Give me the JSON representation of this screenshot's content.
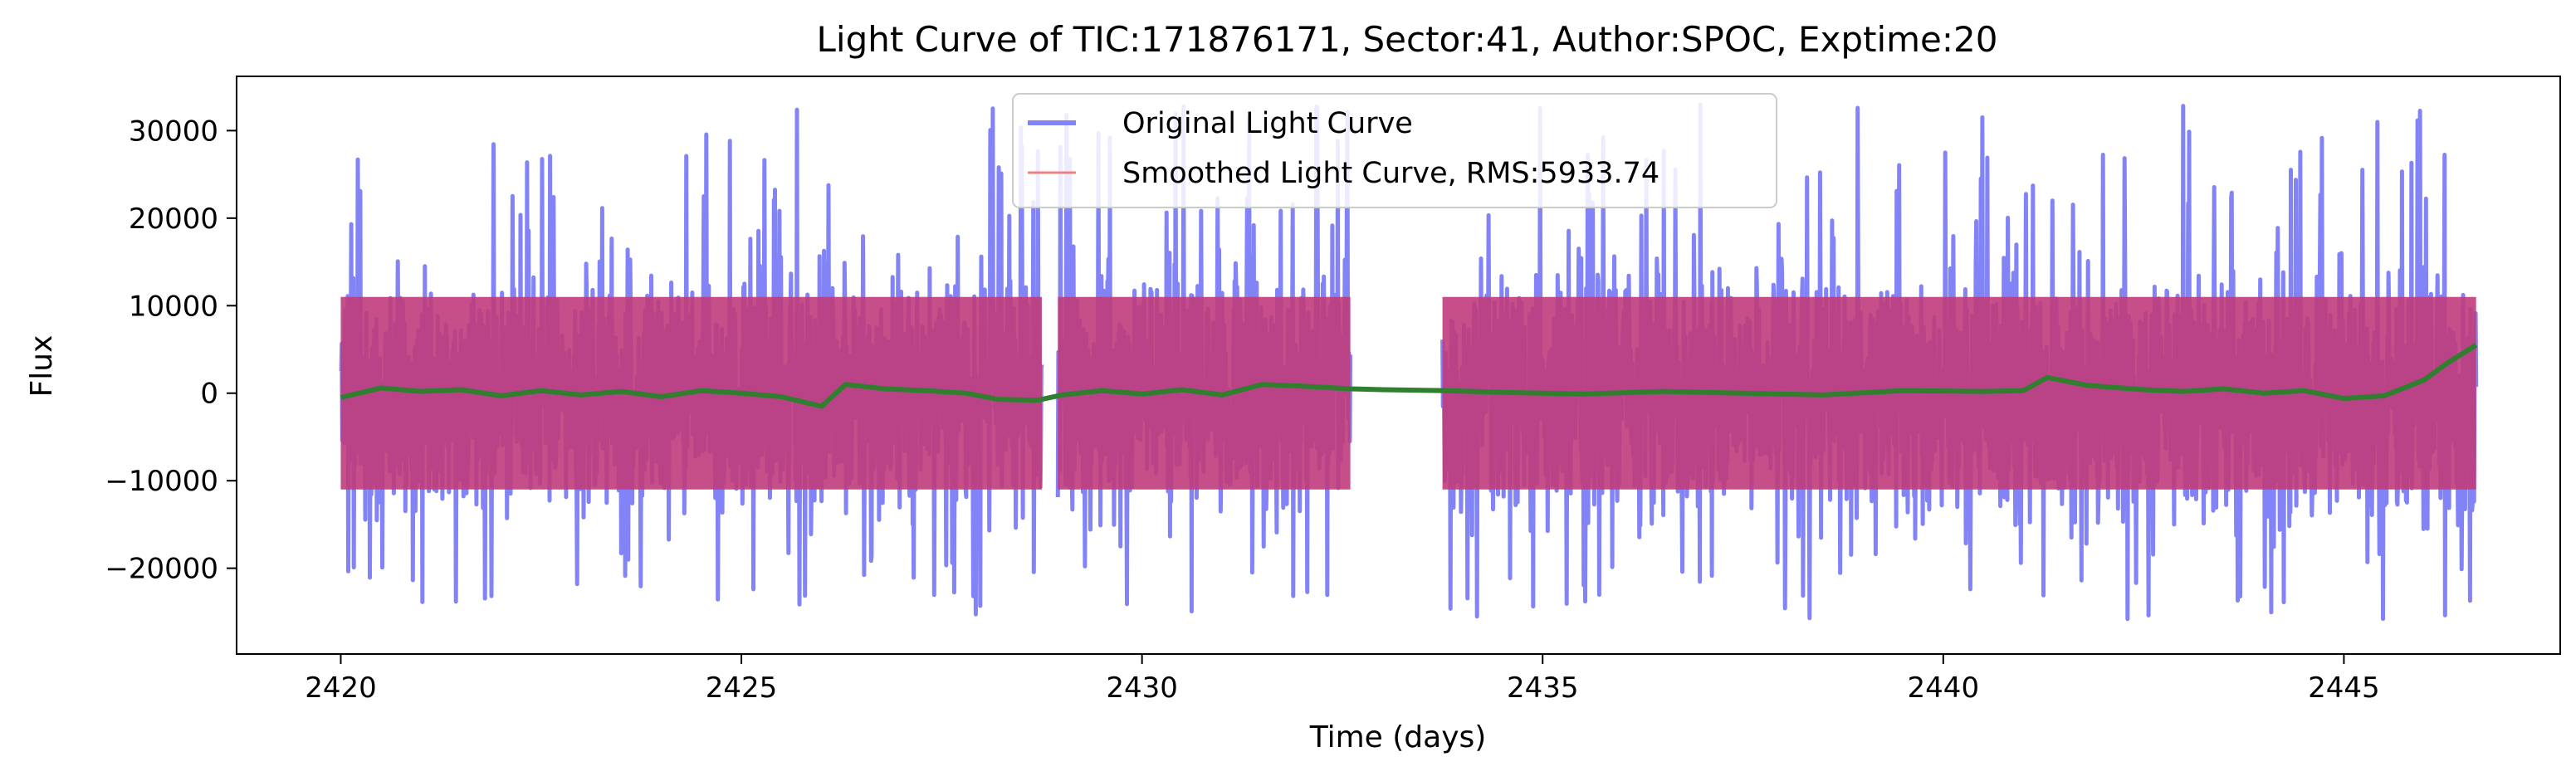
{
  "chart_data": {
    "type": "line",
    "title": "Light Curve of TIC:171876171, Sector:41, Author:SPOC, Exptime:20",
    "xlabel": "Time (days)",
    "ylabel": "Flux",
    "xlim": [
      2418.7,
      2447.7
    ],
    "ylim": [
      -29800,
      36200
    ],
    "xticks": [
      2420,
      2425,
      2430,
      2435,
      2440,
      2445
    ],
    "yticks": [
      -20000,
      -10000,
      0,
      10000,
      20000,
      30000
    ],
    "xtick_labels": [
      "2420",
      "2425",
      "2430",
      "2435",
      "2440",
      "2445"
    ],
    "ytick_labels": [
      "−20000",
      "−10000",
      "0",
      "10000",
      "20000",
      "30000"
    ],
    "grid": false,
    "legend_position": "top-center",
    "series": [
      {
        "name": "Original Light Curve",
        "color": "#7b7cf5",
        "segments": [
          [
            2420.0,
            2428.75
          ],
          [
            2428.95,
            2432.6
          ],
          [
            2433.75,
            2446.65
          ]
        ],
        "noise_envelope": [
          -17000,
          17000
        ],
        "peak_max": 33000,
        "trough_min": -26000
      },
      {
        "name": "Smoothed Light Curve, RMS:5933.74",
        "color": "#f08080",
        "segments": [
          [
            2420.0,
            2428.75
          ],
          [
            2428.95,
            2432.6
          ],
          [
            2433.75,
            2446.65
          ]
        ],
        "noise_envelope": [
          -17000,
          17000
        ]
      },
      {
        "name": "",
        "color": "#2f7f2f",
        "x": [
          2420.0,
          2420.5,
          2421.0,
          2421.5,
          2422.0,
          2422.5,
          2423.0,
          2423.5,
          2424.0,
          2424.5,
          2425.0,
          2425.5,
          2426.0,
          2426.3,
          2426.8,
          2427.3,
          2427.8,
          2428.2,
          2428.7,
          2429.0,
          2429.5,
          2430.0,
          2430.5,
          2431.0,
          2431.5,
          2432.0,
          2432.6,
          2433.0,
          2433.75,
          2434.5,
          2435.5,
          2436.5,
          2437.5,
          2438.5,
          2439.5,
          2440.5,
          2441.0,
          2441.3,
          2441.8,
          2442.5,
          2443.0,
          2443.5,
          2444.0,
          2444.5,
          2445.0,
          2445.5,
          2446.0,
          2446.3,
          2446.65
        ],
        "y": [
          -500,
          600,
          200,
          400,
          -300,
          300,
          -200,
          200,
          -400,
          300,
          0,
          -400,
          -1500,
          1000,
          500,
          300,
          0,
          -700,
          -800,
          -200,
          300,
          -100,
          400,
          -200,
          1000,
          800,
          500,
          400,
          300,
          100,
          -100,
          200,
          0,
          -200,
          300,
          200,
          300,
          1800,
          900,
          400,
          200,
          500,
          0,
          300,
          -600,
          -300,
          1500,
          3500,
          5500
        ]
      }
    ]
  }
}
